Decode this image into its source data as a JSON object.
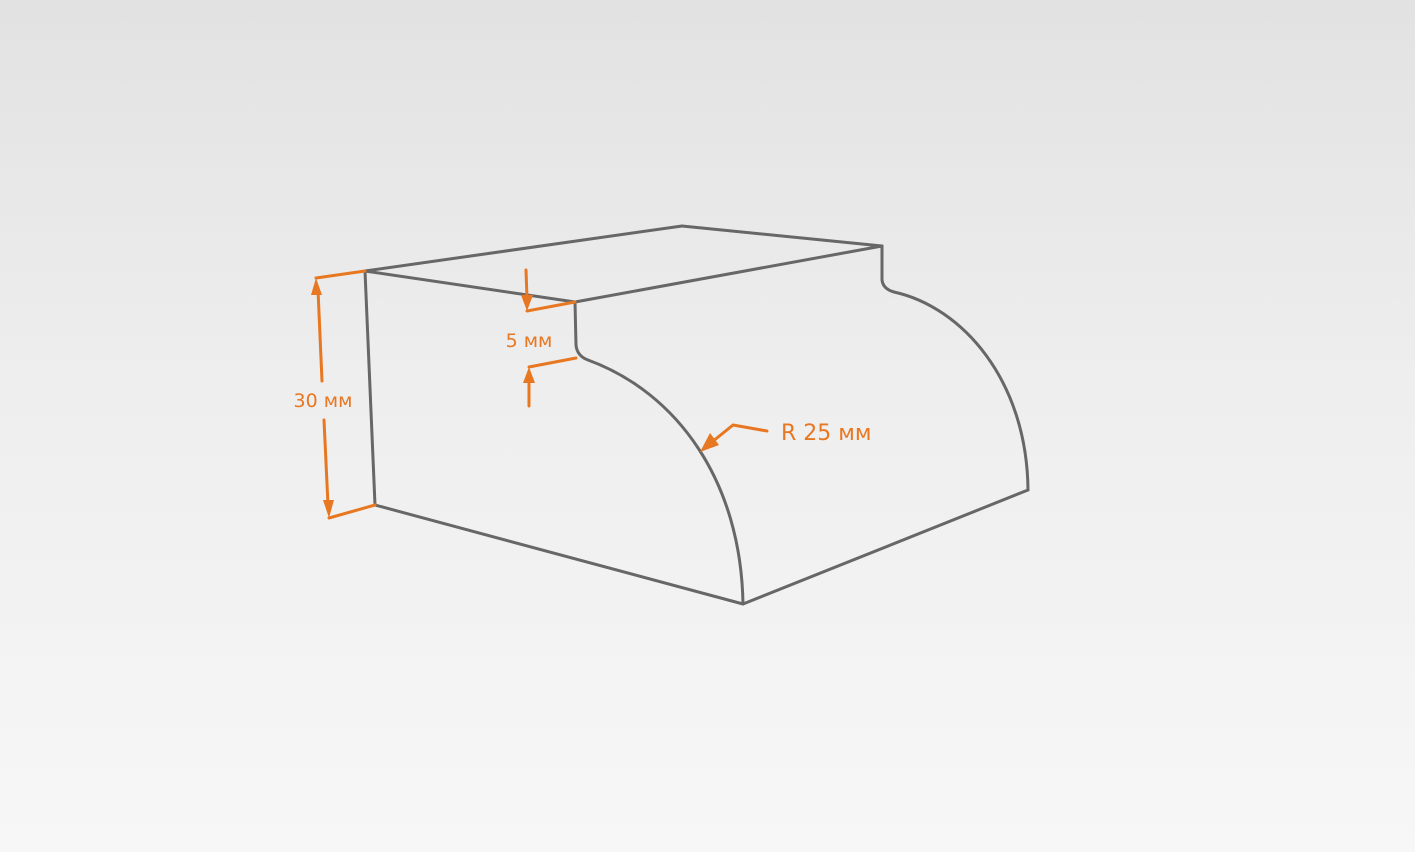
{
  "dimensions": {
    "height": {
      "label": "30 мм"
    },
    "step": {
      "label": "5 мм"
    },
    "radius": {
      "label": "R 25 мм"
    }
  },
  "colors": {
    "outline": "#676767",
    "dimension": "#e87722",
    "background_top": "#e2e2e2",
    "background_bottom": "#f7f7f7"
  }
}
